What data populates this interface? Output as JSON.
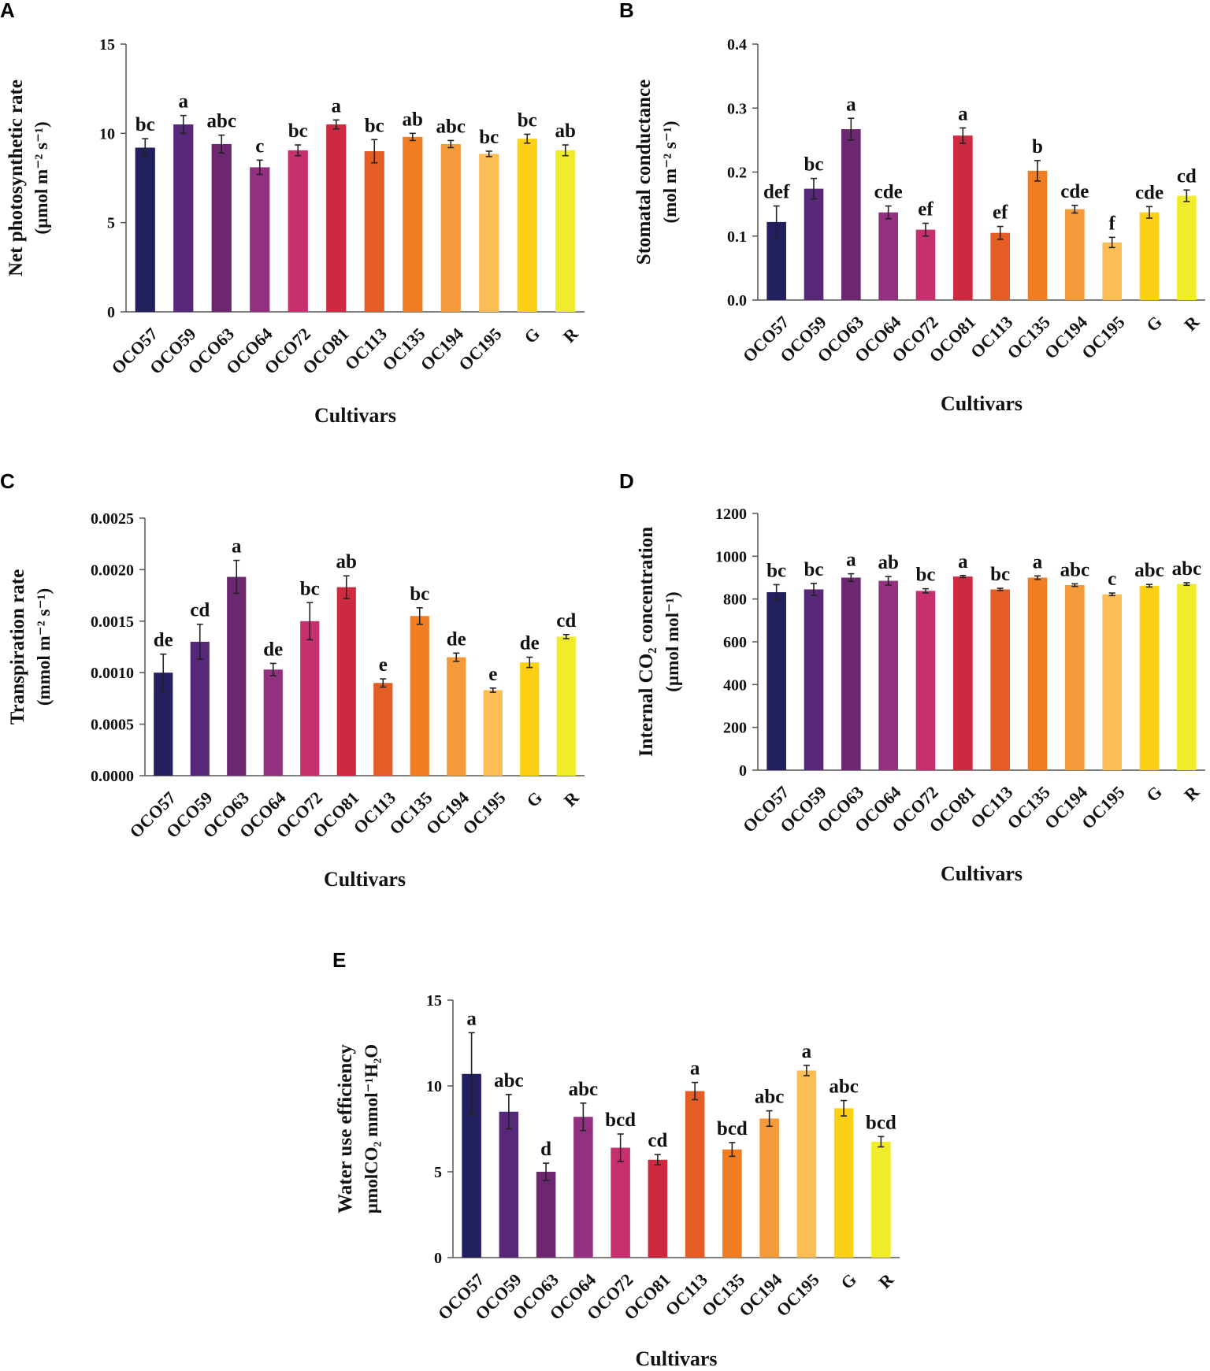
{
  "xlabel": "Cultivars",
  "categories": [
    "OCO57",
    "OCO59",
    "OCO63",
    "OCO64",
    "OCO72",
    "OCO81",
    "OC113",
    "OC135",
    "OC194",
    "OC195",
    "G",
    "R"
  ],
  "colors": [
    "#23205f",
    "#57287a",
    "#6d2670",
    "#93307f",
    "#c7306f",
    "#cd2a41",
    "#e35d25",
    "#f17d22",
    "#f59a3a",
    "#fbbd56",
    "#fcd014",
    "#f0ec2a"
  ],
  "chart_data": [
    {
      "id": "A",
      "type": "bar",
      "panel_label": "A",
      "ylabel_lines": [
        "Net photosynthetic rate",
        "(µmol m⁻² s⁻¹)"
      ],
      "xlabel": "Cultivars",
      "ylim": [
        0,
        15
      ],
      "ticks": [
        "0",
        "5",
        "10",
        "15"
      ],
      "tick_values": [
        0,
        5,
        10,
        15
      ],
      "values": [
        9.2,
        10.5,
        9.4,
        8.1,
        9.05,
        10.5,
        9.0,
        9.8,
        9.4,
        8.85,
        9.7,
        9.05
      ],
      "errors": [
        0.5,
        0.5,
        0.5,
        0.4,
        0.3,
        0.25,
        0.65,
        0.2,
        0.2,
        0.15,
        0.25,
        0.3
      ],
      "letters": [
        "bc",
        "a",
        "abc",
        "c",
        "bc",
        "a",
        "bc",
        "ab",
        "abc",
        "bc",
        "bc",
        "ab"
      ],
      "grid": false
    },
    {
      "id": "B",
      "type": "bar",
      "panel_label": "B",
      "ylabel_lines": [
        "Stomatal conductance",
        "(mol m⁻² s⁻¹)"
      ],
      "xlabel": "Cultivars",
      "ylim": [
        0,
        0.4
      ],
      "ticks": [
        "0.0",
        "0.1",
        "0.2",
        "0.3",
        "0.4"
      ],
      "tick_values": [
        0,
        0.1,
        0.2,
        0.3,
        0.4
      ],
      "values": [
        0.122,
        0.174,
        0.267,
        0.137,
        0.11,
        0.257,
        0.105,
        0.202,
        0.142,
        0.09,
        0.137,
        0.163
      ],
      "errors": [
        0.025,
        0.016,
        0.017,
        0.01,
        0.01,
        0.012,
        0.01,
        0.016,
        0.006,
        0.008,
        0.009,
        0.009
      ],
      "letters": [
        "def",
        "bc",
        "a",
        "cde",
        "ef",
        "a",
        "ef",
        "b",
        "cde",
        "f",
        "cde",
        "cd"
      ],
      "grid": false
    },
    {
      "id": "C",
      "type": "bar",
      "panel_label": "C",
      "ylabel_lines": [
        "Transpiration rate",
        "(mmol m⁻² s⁻¹)"
      ],
      "xlabel": "Cultivars",
      "ylim": [
        0,
        0.0025
      ],
      "ticks": [
        "0.0000",
        "0.0005",
        "0.0010",
        "0.0015",
        "0.0020",
        "0.0025"
      ],
      "tick_values": [
        0,
        0.0005,
        0.001,
        0.0015,
        0.002,
        0.0025
      ],
      "values": [
        0.001,
        0.0013,
        0.00193,
        0.00103,
        0.0015,
        0.00183,
        0.0009,
        0.00155,
        0.00115,
        0.00083,
        0.0011,
        0.00135
      ],
      "errors": [
        0.00018,
        0.00017,
        0.00016,
        6e-05,
        0.00018,
        0.00011,
        4e-05,
        8e-05,
        4e-05,
        2e-05,
        5e-05,
        2e-05
      ],
      "letters": [
        "de",
        "cd",
        "a",
        "de",
        "bc",
        "ab",
        "e",
        "bc",
        "de",
        "e",
        "de",
        "cd"
      ],
      "grid": false
    },
    {
      "id": "D",
      "type": "bar",
      "panel_label": "D",
      "ylabel_lines": [
        "Internal CO₂ concentration",
        "(µmol mol⁻¹)"
      ],
      "xlabel": "Cultivars",
      "ylim": [
        0,
        1200
      ],
      "ticks": [
        "0",
        "200",
        "400",
        "600",
        "800",
        "1000",
        "1200"
      ],
      "tick_values": [
        0,
        200,
        400,
        600,
        800,
        1000,
        1200
      ],
      "values": [
        832,
        845,
        900,
        885,
        838,
        905,
        845,
        900,
        865,
        822,
        862,
        870
      ],
      "errors": [
        35,
        28,
        18,
        20,
        10,
        5,
        5,
        8,
        6,
        6,
        6,
        6
      ],
      "letters": [
        "bc",
        "bc",
        "a",
        "ab",
        "bc",
        "a",
        "bc",
        "a",
        "abc",
        "c",
        "abc",
        "abc"
      ],
      "grid": false
    },
    {
      "id": "E",
      "type": "bar",
      "panel_label": "E",
      "ylabel_lines": [
        "Water use efficiency",
        "µmolCO₂ mmol⁻¹H₂O"
      ],
      "xlabel": "Cultivars",
      "ylim": [
        0,
        15
      ],
      "ticks": [
        "0",
        "5",
        "10",
        "15"
      ],
      "tick_values": [
        0,
        5,
        10,
        15
      ],
      "values": [
        10.7,
        8.5,
        5.0,
        8.2,
        6.4,
        5.7,
        9.7,
        6.3,
        8.1,
        10.9,
        8.7,
        6.75
      ],
      "errors": [
        2.4,
        1.0,
        0.5,
        0.8,
        0.8,
        0.3,
        0.5,
        0.4,
        0.45,
        0.3,
        0.45,
        0.3
      ],
      "letters": [
        "a",
        "abc",
        "d",
        "abc",
        "bcd",
        "cd",
        "a",
        "bcd",
        "abc",
        "a",
        "abc",
        "bcd"
      ],
      "grid": false
    }
  ]
}
